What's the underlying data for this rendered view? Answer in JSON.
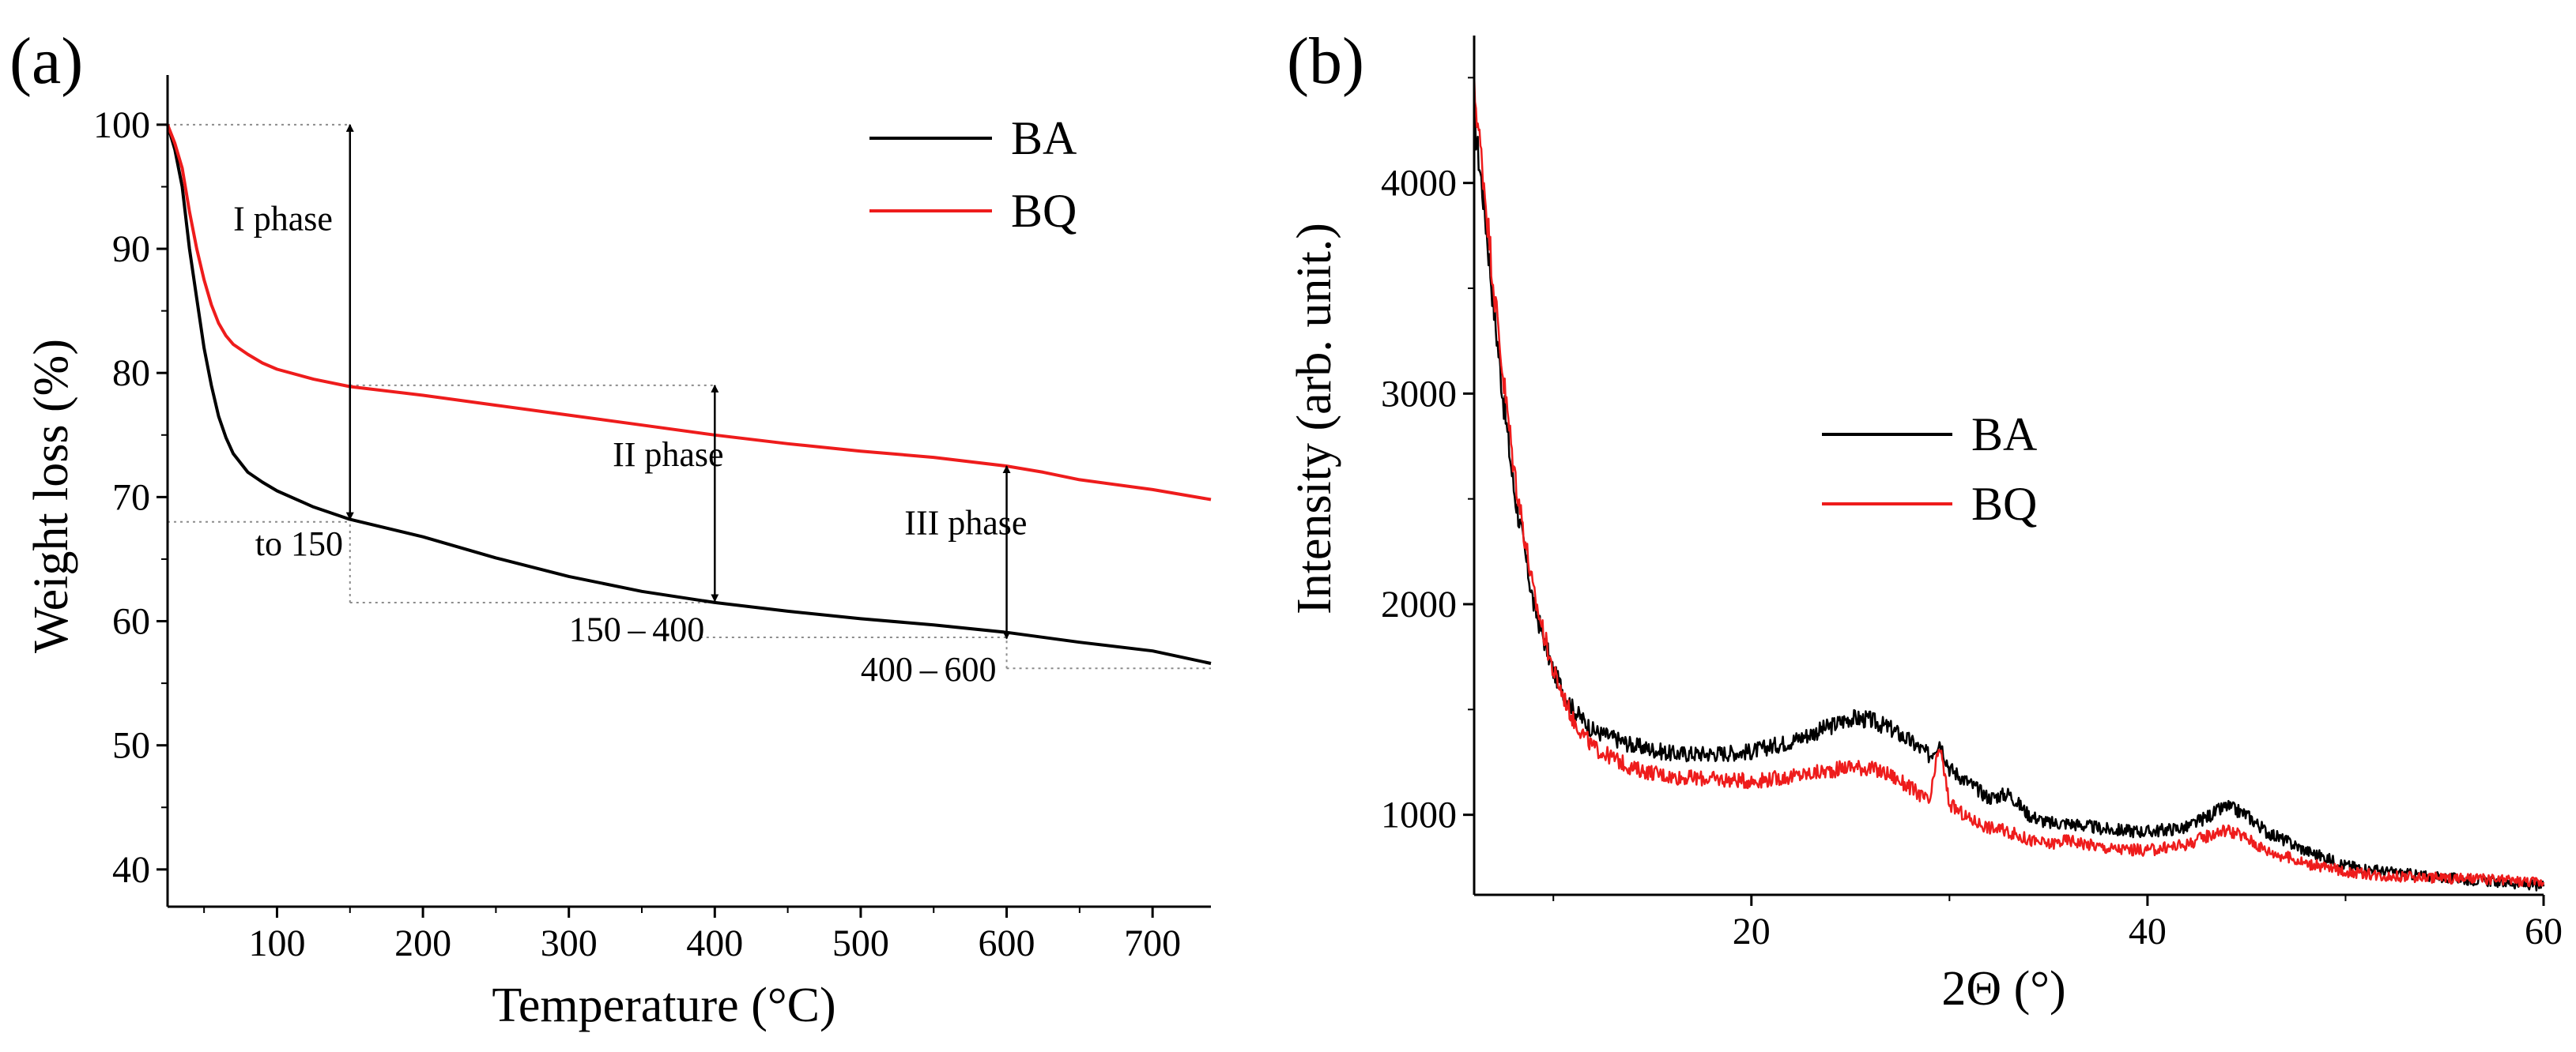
{
  "chart_data": [
    {
      "panel_label": "(a)",
      "type": "line",
      "xlabel": "Temperature (°C)",
      "ylabel": "Weight loss (%)",
      "xlim": [
        25,
        740
      ],
      "ylim": [
        37,
        104
      ],
      "xticks": [
        100,
        200,
        300,
        400,
        500,
        600,
        700
      ],
      "yticks": [
        40,
        50,
        60,
        70,
        80,
        90,
        100
      ],
      "legend": [
        "BA",
        "BQ"
      ],
      "legend_position": "top-right",
      "series": [
        {
          "name": "BA",
          "color": "#000000",
          "x": [
            25,
            30,
            35,
            40,
            45,
            50,
            55,
            60,
            65,
            70,
            80,
            90,
            100,
            125,
            150,
            200,
            250,
            300,
            350,
            400,
            450,
            500,
            550,
            600,
            650,
            700,
            740
          ],
          "y": [
            100,
            98,
            95,
            90,
            86,
            82,
            79,
            76.5,
            74.8,
            73.5,
            72,
            71.2,
            70.5,
            69.2,
            68.2,
            66.8,
            65.1,
            63.6,
            62.4,
            61.5,
            60.8,
            60.2,
            59.7,
            59.1,
            58.3,
            57.6,
            56.6
          ]
        },
        {
          "name": "BQ",
          "color": "#ee1c1c",
          "x": [
            25,
            30,
            35,
            40,
            45,
            50,
            55,
            60,
            65,
            70,
            80,
            90,
            100,
            125,
            150,
            200,
            250,
            300,
            350,
            400,
            450,
            500,
            550,
            600,
            625,
            650,
            700,
            740
          ],
          "y": [
            100,
            98.5,
            96.5,
            93,
            90,
            87.5,
            85.5,
            84,
            83,
            82.3,
            81.5,
            80.8,
            80.3,
            79.5,
            78.9,
            78.2,
            77.4,
            76.6,
            75.8,
            75,
            74.3,
            73.7,
            73.2,
            72.5,
            72,
            71.4,
            70.6,
            69.8
          ]
        }
      ],
      "annotations": [
        {
          "text": "I phase",
          "x": 70,
          "y": 91.5
        },
        {
          "text": "II phase",
          "x": 330,
          "y": 72.5
        },
        {
          "text": "III phase",
          "x": 530,
          "y": 67
        },
        {
          "text": "to 150",
          "x": 85,
          "y": 65.3
        },
        {
          "text": "150 – 400",
          "x": 300,
          "y": 58.4
        },
        {
          "text": "400 – 600",
          "x": 500,
          "y": 55.2
        }
      ],
      "arrows": [
        {
          "x": 150,
          "y_from": 100,
          "y_to": 68.2
        },
        {
          "x": 400,
          "y_from": 79,
          "y_to": 61.6
        },
        {
          "x": 600,
          "y_from": 72.5,
          "y_to": 58.6
        }
      ],
      "guides": [
        {
          "x1": 25,
          "y1": 100,
          "x2": 150,
          "y2": 100
        },
        {
          "x1": 25,
          "y1": 68,
          "x2": 150,
          "y2": 68
        },
        {
          "x1": 150,
          "y1": 61.5,
          "x2": 150,
          "y2": 68
        },
        {
          "x1": 150,
          "y1": 61.5,
          "x2": 400,
          "y2": 61.5
        },
        {
          "x1": 150,
          "y1": 79,
          "x2": 400,
          "y2": 79
        },
        {
          "x1": 400,
          "y1": 61.5,
          "x2": 400,
          "y2": 79
        },
        {
          "x1": 390,
          "y1": 58.7,
          "x2": 600,
          "y2": 58.7
        },
        {
          "x1": 600,
          "y1": 56.2,
          "x2": 600,
          "y2": 58.7
        },
        {
          "x1": 600,
          "y1": 56.2,
          "x2": 740,
          "y2": 56.2
        }
      ]
    },
    {
      "panel_label": "(b)",
      "type": "line",
      "xlabel": "2Θ (°)",
      "ylabel": "Intensity (arb. unit.)",
      "xlim": [
        6,
        60
      ],
      "ylim": [
        620,
        4700
      ],
      "xticks": [
        20,
        40,
        60
      ],
      "yticks": [
        1000,
        2000,
        3000,
        4000
      ],
      "legend": [
        "BA",
        "BQ"
      ],
      "legend_position": "center",
      "series": [
        {
          "name": "BA",
          "color": "#000000",
          "x": [
            6,
            6.5,
            7,
            7.5,
            8,
            9,
            10,
            11,
            12,
            14,
            16,
            18,
            20,
            22,
            24,
            25,
            26,
            27,
            28,
            29,
            29.5,
            30,
            31,
            32,
            33,
            34,
            35,
            36,
            38,
            40,
            42,
            43,
            44,
            45,
            46,
            48,
            50,
            52,
            55,
            58,
            60
          ],
          "y": [
            4300,
            3900,
            3400,
            2950,
            2550,
            2000,
            1680,
            1500,
            1400,
            1330,
            1290,
            1290,
            1300,
            1350,
            1420,
            1460,
            1450,
            1410,
            1350,
            1280,
            1350,
            1220,
            1150,
            1080,
            1100,
            1000,
            960,
            960,
            930,
            920,
            940,
            990,
            1040,
            1000,
            920,
            830,
            760,
            730,
            700,
            680,
            660
          ]
        },
        {
          "name": "BQ",
          "color": "#ee1c1c",
          "x": [
            6,
            6.5,
            7,
            7.5,
            8,
            9,
            10,
            11,
            12,
            14,
            16,
            18,
            20,
            22,
            24,
            25,
            26,
            27,
            28,
            29,
            29.5,
            30,
            31,
            32,
            33,
            34,
            35,
            36,
            38,
            40,
            42,
            43,
            44,
            45,
            46,
            48,
            50,
            52,
            55,
            58,
            60
          ],
          "y": [
            4450,
            4000,
            3500,
            3050,
            2650,
            2050,
            1680,
            1450,
            1320,
            1220,
            1180,
            1170,
            1160,
            1180,
            1210,
            1230,
            1220,
            1190,
            1130,
            1060,
            1330,
            1050,
            980,
            940,
            920,
            880,
            860,
            880,
            840,
            830,
            860,
            900,
            930,
            890,
            830,
            770,
            730,
            710,
            700,
            690,
            680
          ]
        }
      ]
    }
  ]
}
